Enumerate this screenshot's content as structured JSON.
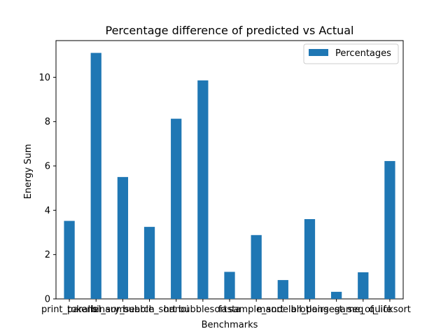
{
  "chart_data": {
    "type": "bar",
    "title": "Percentage difference of predicted vs Actual",
    "xlabel": "Benchmarks",
    "ylabel": "Energy Sum",
    "categories": [
      "print_tokens",
      "parallel_sum",
      "binary_search",
      "bubble_sort",
      "hanoi",
      "bubblesort",
      "fasta",
      "sample_sort",
      "mandelbrot",
      "all_pairs",
      "longest_seq",
      "game_of_life",
      "quicksort"
    ],
    "series": [
      {
        "name": "Percentages",
        "color": "#1f77b4",
        "values": [
          3.52,
          11.1,
          5.5,
          3.25,
          8.13,
          9.86,
          1.22,
          2.88,
          0.85,
          3.6,
          0.32,
          1.2,
          6.22
        ]
      }
    ],
    "ylim": [
      0,
      11.655
    ],
    "yticks": [
      "0",
      "2",
      "4",
      "6",
      "8",
      "10"
    ],
    "grid": false,
    "legend_position": "upper right"
  }
}
